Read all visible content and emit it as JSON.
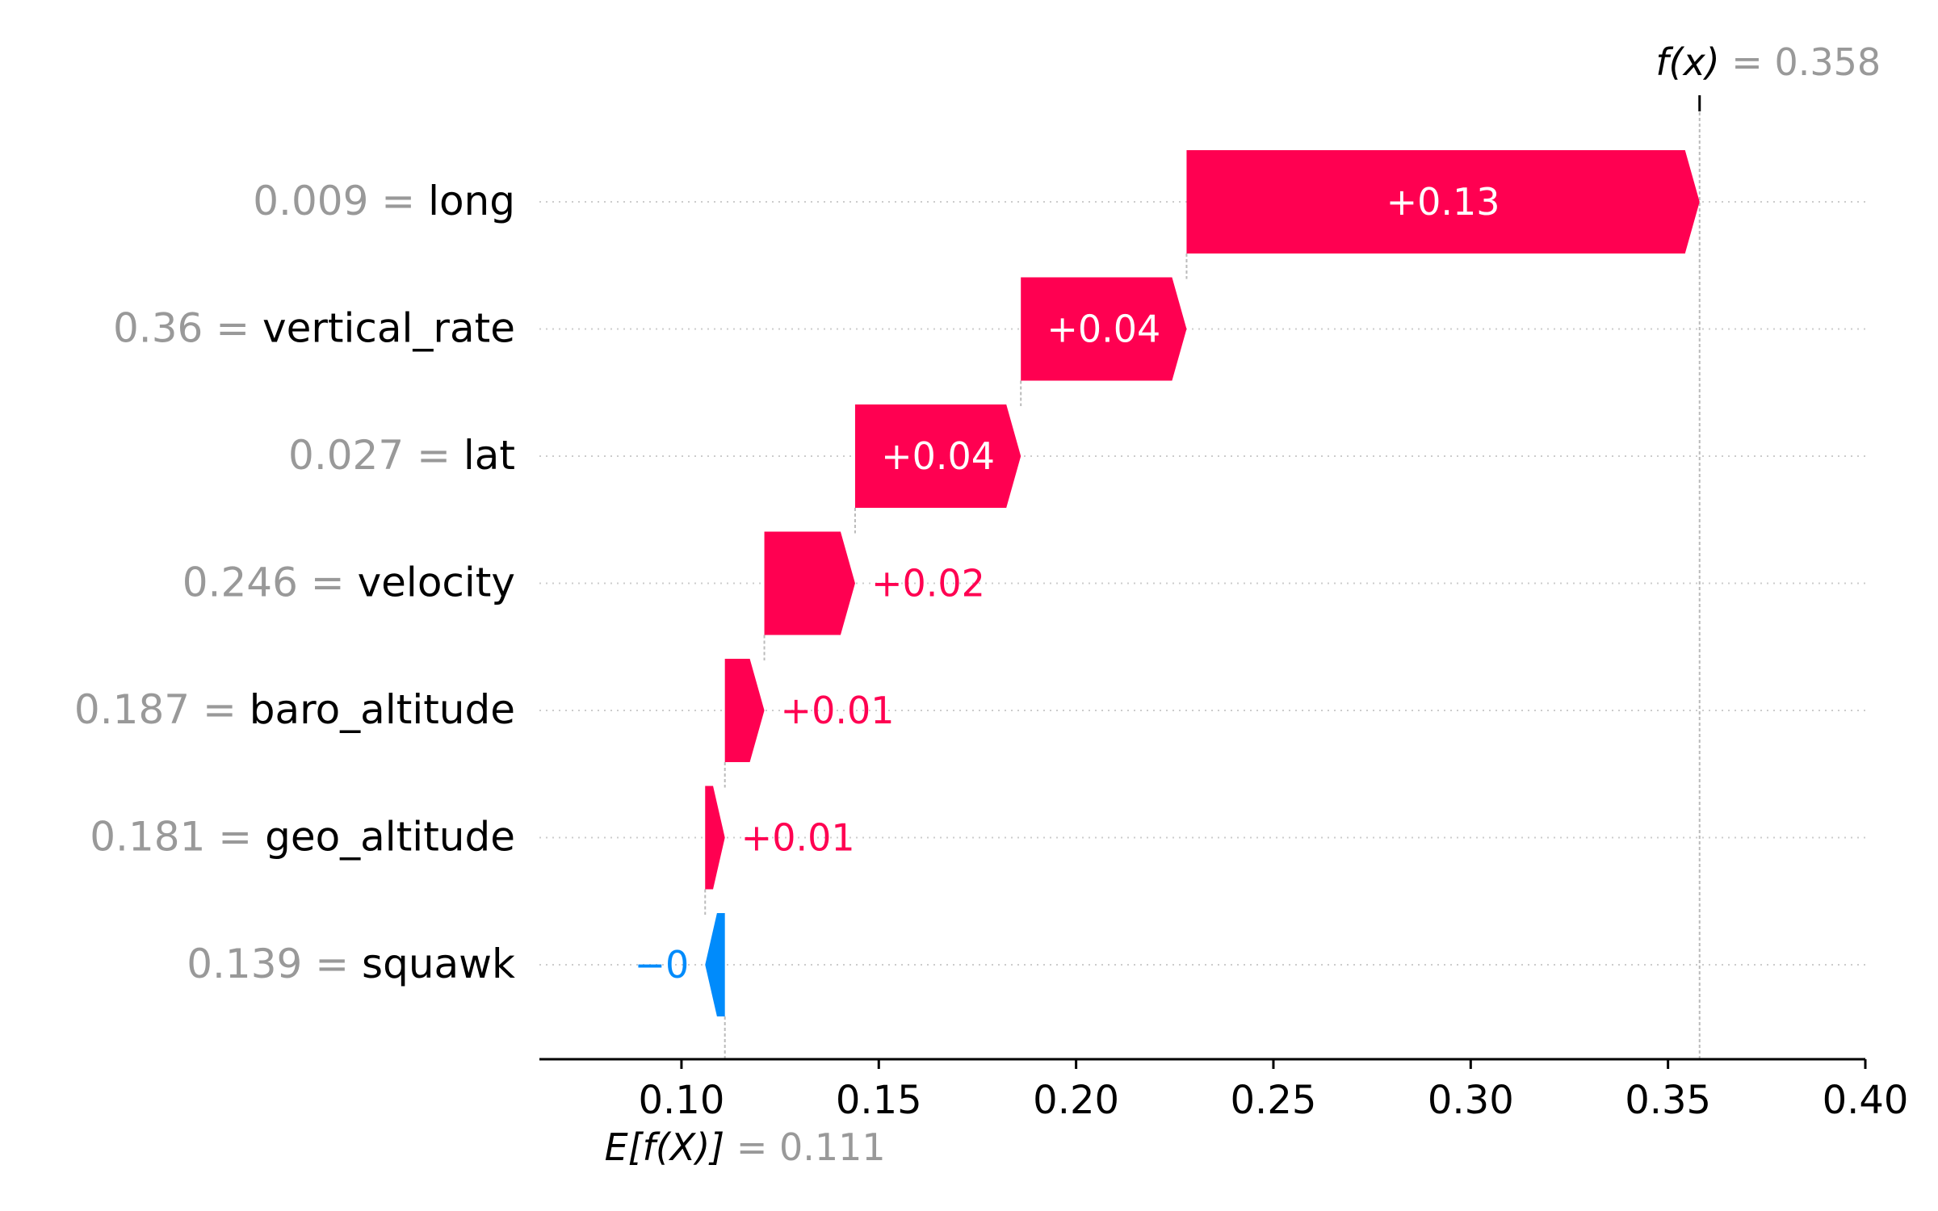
{
  "chart_data": {
    "type": "waterfall",
    "features": [
      {
        "name": "long",
        "value": "0.009",
        "contribution": 0.13,
        "label": "+0.13"
      },
      {
        "name": "vertical_rate",
        "value": "0.36",
        "contribution": 0.04,
        "label": "+0.04"
      },
      {
        "name": "lat",
        "value": "0.027",
        "contribution": 0.04,
        "label": "+0.04"
      },
      {
        "name": "velocity",
        "value": "0.246",
        "contribution": 0.02,
        "label": "+0.02"
      },
      {
        "name": "baro_altitude",
        "value": "0.187",
        "contribution": 0.01,
        "label": "+0.01"
      },
      {
        "name": "geo_altitude",
        "value": "0.181",
        "contribution": 0.01,
        "label": "+0.01"
      },
      {
        "name": "squawk",
        "value": "0.139",
        "contribution": -0.001,
        "label": "−0"
      }
    ],
    "bar_spans": [
      [
        0.228,
        0.358
      ],
      [
        0.186,
        0.228
      ],
      [
        0.144,
        0.186
      ],
      [
        0.121,
        0.144
      ],
      [
        0.111,
        0.121
      ],
      [
        0.106,
        0.111
      ],
      [
        0.106,
        0.111
      ]
    ],
    "base_value": 0.111,
    "output_value": 0.358,
    "base_label": "E[f(X)]",
    "base_value_text": "= 0.111",
    "output_label": "f(x)",
    "output_value_text": "= 0.358",
    "x_ticks": [
      0.1,
      0.15,
      0.2,
      0.25,
      0.3,
      0.35,
      0.4
    ],
    "x_tick_labels": [
      "0.10",
      "0.15",
      "0.20",
      "0.25",
      "0.30",
      "0.35",
      "0.40"
    ],
    "xlim": [
      0.064,
      0.4
    ],
    "colors": {
      "positive": "#ff0051",
      "negative": "#008bfb",
      "value_text": "#999999",
      "grid": "#cccccc"
    }
  }
}
